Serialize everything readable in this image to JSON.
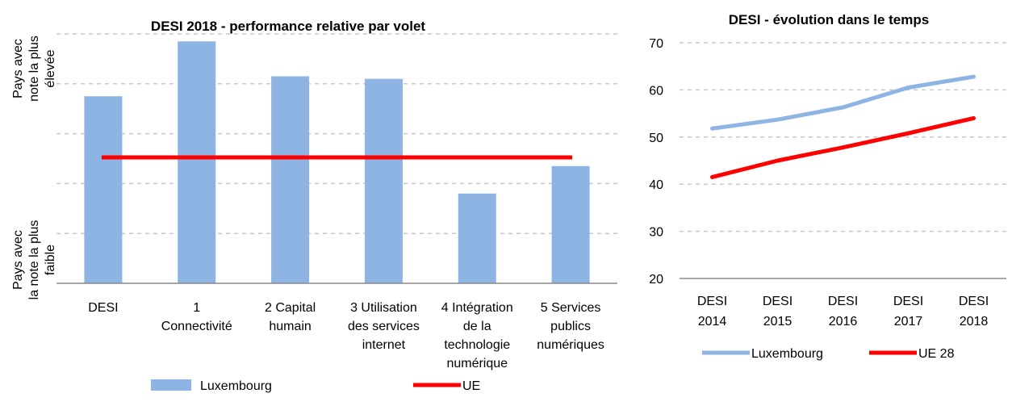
{
  "chart_data": [
    {
      "type": "bar",
      "title": "DESI 2018 -  performance relative par volet",
      "ylabel_top": "Pays avec la note la plus élevée",
      "ylabel_bottom": "Pays avec la note la plus faible",
      "categories": [
        [
          "DESI"
        ],
        [
          "1",
          "Connectivité"
        ],
        [
          "2 Capital",
          "humain"
        ],
        [
          "3 Utilisation",
          "des services",
          "internet"
        ],
        [
          "4 Intégration",
          "de la",
          "technologie",
          "numérique"
        ],
        [
          "5 Services",
          "publics",
          "numériques"
        ]
      ],
      "ylim": [
        0,
        1
      ],
      "grid": true,
      "series": [
        {
          "name": "Luxembourg",
          "kind": "bar",
          "color": "#8eb4e3",
          "values": [
            0.75,
            0.97,
            0.83,
            0.82,
            0.36,
            0.47
          ]
        },
        {
          "name": "UE",
          "kind": "line",
          "color": "#ff0000",
          "values": [
            0.505,
            0.505,
            0.505,
            0.505,
            0.505,
            0.505
          ]
        }
      ],
      "legend": "bottom"
    },
    {
      "type": "line",
      "title": "DESI - évolution dans le temps",
      "categories": [
        [
          "DESI",
          "2014"
        ],
        [
          "DESI",
          "2015"
        ],
        [
          "DESI",
          "2016"
        ],
        [
          "DESI",
          "2017"
        ],
        [
          "DESI",
          "2018"
        ]
      ],
      "ylim": [
        20,
        70
      ],
      "yticks": [
        20,
        30,
        40,
        50,
        60,
        70
      ],
      "grid": true,
      "series": [
        {
          "name": "Luxembourg",
          "color": "#8eb4e3",
          "values": [
            51.8,
            53.7,
            56.3,
            60.5,
            62.8
          ]
        },
        {
          "name": "UE 28",
          "color": "#ff0000",
          "values": [
            41.5,
            45.0,
            47.8,
            50.8,
            54.0
          ]
        }
      ],
      "legend": "bottom"
    }
  ]
}
